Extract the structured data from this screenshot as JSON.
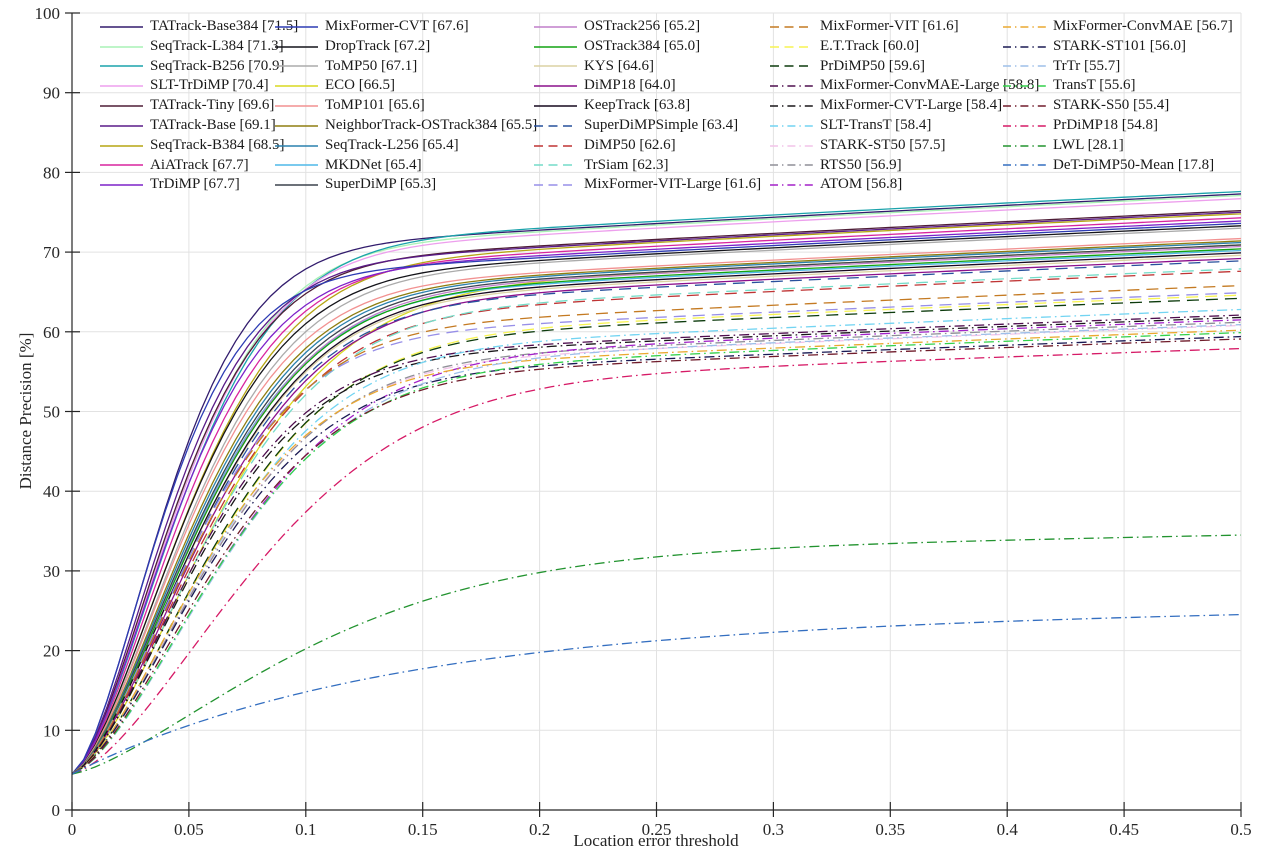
{
  "chart_data": {
    "type": "line",
    "title": "",
    "xlabel": "Location error threshold",
    "ylabel": "Distance Precision [%]",
    "xlim": [
      0,
      0.5
    ],
    "ylim": [
      0,
      100
    ],
    "x_tick_values": [
      0,
      0.05,
      0.1,
      0.15,
      0.2,
      0.25,
      0.3,
      0.35,
      0.4,
      0.45,
      0.5
    ],
    "x_tick_labels": [
      "0",
      "0.05",
      "0.1",
      "0.15",
      "0.2",
      "0.25",
      "0.3",
      "0.35",
      "0.4",
      "0.45",
      "0.5"
    ],
    "y_tick_values": [
      0,
      10,
      20,
      30,
      40,
      50,
      60,
      70,
      80,
      90,
      100
    ],
    "y_tick_labels": [
      "0",
      "10",
      "20",
      "30",
      "40",
      "50",
      "60",
      "70",
      "80",
      "90",
      "100"
    ],
    "grid": true,
    "legend_position": "top-inside",
    "legend_columns": 5,
    "legend_column_sizes": [
      9,
      9,
      9,
      9,
      8
    ],
    "curve_model": {
      "description": "y(x) = start_y + (end - start_y) * (0.88*(1-exp(-(x/c)^p)) + 0.12*(x/0.5)^0.8); p defaults to 1.6",
      "start_y": 4.5,
      "x_start": 0,
      "x_end": 0.5,
      "x_step": 0.005
    },
    "series": [
      {
        "name": "TATrack-Base384",
        "score": 71.5,
        "label": "TATrack-Base384 [71.5]",
        "color": "#321c6d",
        "style": "solid",
        "end": 77.3,
        "c": 0.05
      },
      {
        "name": "SeqTrack-L384",
        "score": 71.3,
        "label": "SeqTrack-L384 [71.3]",
        "color": "#a9f2b5",
        "style": "solid",
        "end": 77.1,
        "c": 0.056
      },
      {
        "name": "SeqTrack-B256",
        "score": 70.9,
        "label": "SeqTrack-B256 [70.9]",
        "color": "#1ba3ab",
        "style": "solid",
        "end": 77.6,
        "c": 0.058
      },
      {
        "name": "SLT-TrDiMP",
        "score": 70.4,
        "label": "SLT-TrDiMP [70.4]",
        "color": "#ed9fed",
        "style": "solid",
        "end": 76.7,
        "c": 0.056
      },
      {
        "name": "TATrack-Tiny",
        "score": 69.6,
        "label": "TATrack-Tiny [69.6]",
        "color": "#4e1d36",
        "style": "solid",
        "end": 75.2,
        "c": 0.054
      },
      {
        "name": "TATrack-Base",
        "score": 69.1,
        "label": "TATrack-Base [69.1]",
        "color": "#5a1b88",
        "style": "solid",
        "end": 75.0,
        "c": 0.052
      },
      {
        "name": "SeqTrack-B384",
        "score": 68.5,
        "label": "SeqTrack-B384 [68.5]",
        "color": "#b5a513",
        "style": "solid",
        "end": 74.8,
        "c": 0.061
      },
      {
        "name": "AiATrack",
        "score": 67.7,
        "label": "AiATrack [67.7]",
        "color": "#d9259e",
        "style": "solid",
        "end": 74.3,
        "c": 0.058
      },
      {
        "name": "TrDiMP",
        "score": 67.7,
        "label": "TrDiMP [67.7]",
        "color": "#7d22c9",
        "style": "solid",
        "end": 73.9,
        "c": 0.055
      },
      {
        "name": "MixFormer-CVT",
        "score": 67.6,
        "label": "MixFormer-CVT [67.6]",
        "color": "#2d3cb4",
        "style": "solid",
        "end": 73.6,
        "c": 0.048
      },
      {
        "name": "DropTrack",
        "score": 67.2,
        "label": "DropTrack [67.2]",
        "color": "#14141a",
        "style": "solid",
        "end": 73.3,
        "c": 0.06
      },
      {
        "name": "ToMP50",
        "score": 67.1,
        "label": "ToMP50 [67.1]",
        "color": "#ababab",
        "style": "solid",
        "end": 73.0,
        "c": 0.062
      },
      {
        "name": "ECO",
        "score": 66.5,
        "label": "ECO [66.5]",
        "color": "#d9d921",
        "style": "solid",
        "end": 70.9,
        "c": 0.075
      },
      {
        "name": "ToMP101",
        "score": 65.6,
        "label": "ToMP101 [65.6]",
        "color": "#f29191",
        "style": "solid",
        "end": 71.7,
        "c": 0.062
      },
      {
        "name": "NeighborTrack-OSTrack384",
        "score": 65.5,
        "label": "NeighborTrack-OSTrack384 [65.5]",
        "color": "#8f7e10",
        "style": "solid",
        "end": 71.4,
        "c": 0.064
      },
      {
        "name": "SeqTrack-L256",
        "score": 65.4,
        "label": "SeqTrack-L256 [65.4]",
        "color": "#2a80ad",
        "style": "solid",
        "end": 71.2,
        "c": 0.065
      },
      {
        "name": "MKDNet",
        "score": 65.4,
        "label": "MKDNet [65.4]",
        "color": "#4fb9e8",
        "style": "solid",
        "end": 70.2,
        "c": 0.066
      },
      {
        "name": "SuperDiMP",
        "score": 65.3,
        "label": "SuperDiMP [65.3]",
        "color": "#3c424d",
        "style": "solid",
        "end": 70.9,
        "c": 0.066
      },
      {
        "name": "OSTrack256",
        "score": 65.2,
        "label": "OSTrack256 [65.2]",
        "color": "#c07fca",
        "style": "solid",
        "end": 70.7,
        "c": 0.067
      },
      {
        "name": "OSTrack384",
        "score": 65.0,
        "label": "OSTrack384 [65.0]",
        "color": "#12a312",
        "style": "solid",
        "end": 70.4,
        "c": 0.067
      },
      {
        "name": "KYS",
        "score": 64.6,
        "label": "KYS [64.6]",
        "color": "#dbd2a4",
        "style": "solid",
        "end": 69.6,
        "c": 0.068
      },
      {
        "name": "DiMP18",
        "score": 64.0,
        "label": "DiMP18 [64.0]",
        "color": "#8c108c",
        "style": "solid",
        "end": 69.2,
        "c": 0.07
      },
      {
        "name": "KeepTrack",
        "score": 63.8,
        "label": "KeepTrack [63.8]",
        "color": "#16091f",
        "style": "solid",
        "end": 69.9,
        "c": 0.068
      },
      {
        "name": "SuperDiMPSimple",
        "score": 63.4,
        "label": "SuperDiMPSimple [63.4]",
        "color": "#27509c",
        "style": "dashed",
        "end": 68.9,
        "c": 0.068
      },
      {
        "name": "DiMP50",
        "score": 62.6,
        "label": "DiMP50 [62.6]",
        "color": "#bf3434",
        "style": "dashed",
        "end": 67.6,
        "c": 0.07
      },
      {
        "name": "TrSiam",
        "score": 62.3,
        "label": "TrSiam [62.3]",
        "color": "#74dcc8",
        "style": "dashed",
        "end": 67.9,
        "c": 0.072
      },
      {
        "name": "MixFormer-VIT-Large",
        "score": 61.6,
        "label": "MixFormer-VIT-Large [61.6]",
        "color": "#978fe8",
        "style": "dashed",
        "end": 64.9,
        "c": 0.064
      },
      {
        "name": "MixFormer-VIT",
        "score": 61.6,
        "label": "MixFormer-VIT [61.6]",
        "color": "#c47a22",
        "style": "dashed",
        "end": 65.8,
        "c": 0.066
      },
      {
        "name": "E.T.Track",
        "score": 60.0,
        "label": "E.T.Track [60.0]",
        "color": "#f7f452",
        "style": "dashed",
        "end": 64.6,
        "c": 0.075
      },
      {
        "name": "PrDiMP50",
        "score": 59.6,
        "label": "PrDiMP50 [59.6]",
        "color": "#0d3b0d",
        "style": "dashed",
        "end": 64.2,
        "c": 0.074
      },
      {
        "name": "MixFormer-ConvMAE-Large",
        "score": 58.8,
        "label": "MixFormer-ConvMAE-Large [58.8]",
        "color": "#4f0e4f",
        "style": "dashdot",
        "end": 62.1,
        "c": 0.066
      },
      {
        "name": "MixFormer-CVT-Large",
        "score": 58.4,
        "label": "MixFormer-CVT-Large [58.4]",
        "color": "#191619",
        "style": "dashdot",
        "end": 61.8,
        "c": 0.067
      },
      {
        "name": "SLT-TransT",
        "score": 58.4,
        "label": "SLT-TransT [58.4]",
        "color": "#72d4f2",
        "style": "dashdot",
        "end": 62.8,
        "c": 0.074
      },
      {
        "name": "STARK-ST50",
        "score": 57.5,
        "label": "STARK-ST50 [57.5]",
        "color": "#f2c3e8",
        "style": "dashdot",
        "end": 60.8,
        "c": 0.072
      },
      {
        "name": "RTS50",
        "score": 56.9,
        "label": "RTS50 [56.9]",
        "color": "#8f8f97",
        "style": "dashdot",
        "end": 61.2,
        "c": 0.073
      },
      {
        "name": "ATOM",
        "score": 56.8,
        "label": "ATOM [56.8]",
        "color": "#a321c9",
        "style": "dashdot",
        "end": 61.5,
        "c": 0.08
      },
      {
        "name": "MixFormer-ConvMAE",
        "score": 56.7,
        "label": "MixFormer-ConvMAE [56.7]",
        "color": "#eaa930",
        "style": "dashdot",
        "end": 60.2,
        "c": 0.07
      },
      {
        "name": "STARK-ST101",
        "score": 56.0,
        "label": "STARK-ST101 [56.0]",
        "color": "#1a1a54",
        "style": "dashdot",
        "end": 59.4,
        "c": 0.072
      },
      {
        "name": "TrTr",
        "score": 55.7,
        "label": "TrTr [55.7]",
        "color": "#9dbfe9",
        "style": "dashdot",
        "end": 60.9,
        "c": 0.08
      },
      {
        "name": "TransT",
        "score": 55.6,
        "label": "TransT [55.6]",
        "color": "#33d14b",
        "style": "dashdot",
        "end": 59.9,
        "c": 0.078
      },
      {
        "name": "STARK-S50",
        "score": 55.4,
        "label": "STARK-S50 [55.4]",
        "color": "#701c2b",
        "style": "dashdot",
        "end": 59.1,
        "c": 0.075
      },
      {
        "name": "PrDiMP18",
        "score": 54.8,
        "label": "PrDiMP18 [54.8]",
        "color": "#d61a66",
        "style": "dashdot",
        "end": 57.9,
        "c": 0.095
      },
      {
        "name": "LWL",
        "score": 28.1,
        "label": "LWL [28.1]",
        "color": "#22932f",
        "style": "dashdot",
        "end": 34.5,
        "c": 0.115,
        "p": 1.45
      },
      {
        "name": "DeT-DiMP50-Mean",
        "score": 17.8,
        "label": "DeT-DiMP50-Mean [17.8]",
        "color": "#336ec0",
        "style": "dashdot",
        "end": 24.9,
        "c": 0.13,
        "p": 1.0
      }
    ]
  },
  "colors": {
    "background": "#ffffff",
    "axis": "#262626",
    "grid": "#e2e2e2",
    "tick_label": "#262626",
    "legend_text": "#1a1a1a"
  }
}
